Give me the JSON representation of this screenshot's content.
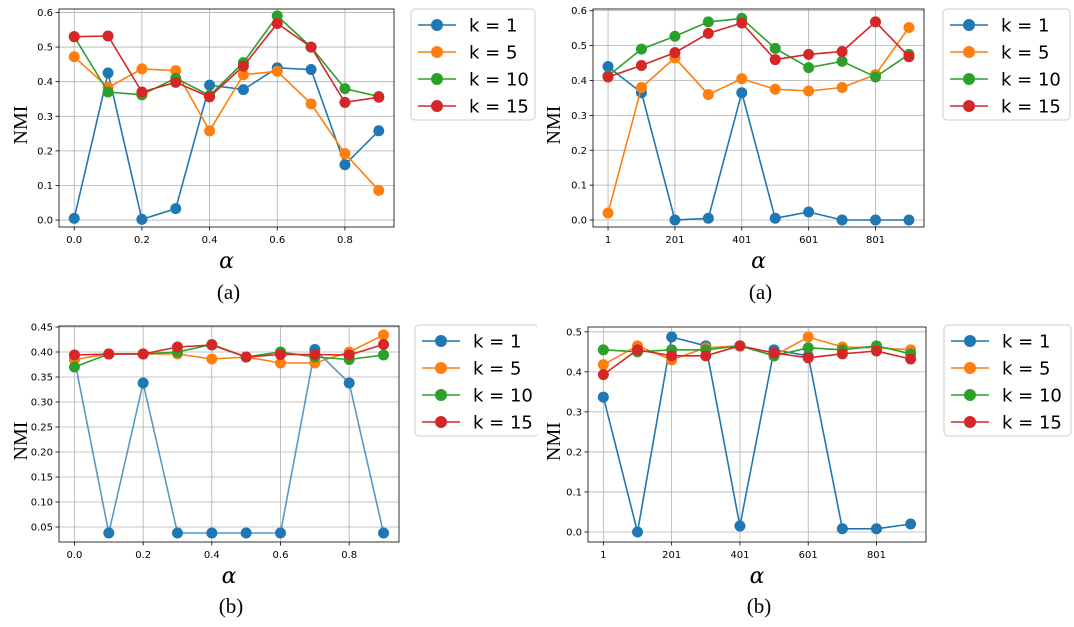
{
  "chart_data": [
    {
      "type": "line",
      "subcaption": "(a)",
      "xlabel": "α",
      "ylabel": "NMI",
      "x": [
        0.0,
        0.1,
        0.2,
        0.3,
        0.4,
        0.5,
        0.6,
        0.7,
        0.8,
        0.9
      ],
      "xlim": [
        -0.045,
        0.945
      ],
      "ylim": [
        -0.02,
        0.61
      ],
      "xticks": [
        0.0,
        0.2,
        0.4,
        0.6,
        0.8
      ],
      "xtick_labels": [
        "0.0",
        "0.2",
        "0.4",
        "0.6",
        "0.8"
      ],
      "yticks": [
        0.0,
        0.1,
        0.2,
        0.3,
        0.4,
        0.5,
        0.6
      ],
      "ytick_labels": [
        "0.0",
        "0.1",
        "0.2",
        "0.3",
        "0.4",
        "0.5",
        "0.6"
      ],
      "grid": true,
      "legend_position": "outside-right",
      "series": [
        {
          "name": "k = 1",
          "color": "#1f77b4",
          "values": [
            0.005,
            0.425,
            0.002,
            0.033,
            0.39,
            0.377,
            0.44,
            0.435,
            0.16,
            0.258
          ]
        },
        {
          "name": "k = 5",
          "color": "#ff7f0e",
          "values": [
            0.472,
            0.383,
            0.437,
            0.432,
            0.258,
            0.42,
            0.43,
            0.336,
            0.192,
            0.086
          ]
        },
        {
          "name": "k = 10",
          "color": "#2ca02c",
          "values": [
            0.53,
            0.37,
            0.362,
            0.41,
            0.36,
            0.455,
            0.59,
            0.5,
            0.38,
            0.357
          ]
        },
        {
          "name": "k = 15",
          "color": "#d62728",
          "values": [
            0.53,
            0.532,
            0.37,
            0.398,
            0.356,
            0.445,
            0.568,
            0.5,
            0.34,
            0.355
          ]
        }
      ]
    },
    {
      "type": "line",
      "subcaption": "(a)",
      "xlabel": "α",
      "ylabel": "NMI",
      "x": [
        1,
        101,
        201,
        301,
        401,
        501,
        601,
        701,
        801,
        901
      ],
      "xlim": [
        -44,
        946
      ],
      "ylim": [
        -0.02,
        0.605
      ],
      "xticks": [
        1,
        201,
        401,
        601,
        801
      ],
      "xtick_labels": [
        "1",
        "201",
        "401",
        "601",
        "801"
      ],
      "yticks": [
        0.0,
        0.1,
        0.2,
        0.3,
        0.4,
        0.5,
        0.6
      ],
      "ytick_labels": [
        "0.0",
        "0.1",
        "0.2",
        "0.3",
        "0.4",
        "0.5",
        "0.6"
      ],
      "grid": true,
      "legend_position": "outside-right",
      "series": [
        {
          "name": "k = 1",
          "color": "#1f77b4",
          "values": [
            0.44,
            0.365,
            0.0,
            0.005,
            0.365,
            0.005,
            0.023,
            0.0,
            0.0,
            0.0
          ]
        },
        {
          "name": "k = 5",
          "color": "#ff7f0e",
          "values": [
            0.02,
            0.38,
            0.465,
            0.36,
            0.405,
            0.375,
            0.37,
            0.38,
            0.417,
            0.552
          ]
        },
        {
          "name": "k = 10",
          "color": "#2ca02c",
          "values": [
            0.413,
            0.49,
            0.527,
            0.568,
            0.578,
            0.492,
            0.437,
            0.455,
            0.41,
            0.475
          ]
        },
        {
          "name": "k = 15",
          "color": "#d62728",
          "values": [
            0.41,
            0.443,
            0.48,
            0.535,
            0.565,
            0.46,
            0.475,
            0.483,
            0.568,
            0.468
          ]
        }
      ]
    },
    {
      "type": "line",
      "subcaption": "(b)",
      "xlabel": "α",
      "ylabel": "NMI",
      "x": [
        0.0,
        0.1,
        0.2,
        0.3,
        0.4,
        0.5,
        0.6,
        0.7,
        0.8,
        0.9
      ],
      "xlim": [
        -0.045,
        0.945
      ],
      "ylim": [
        0.02,
        0.452
      ],
      "xticks": [
        0.0,
        0.2,
        0.4,
        0.6,
        0.8
      ],
      "xtick_labels": [
        "0.0",
        "0.2",
        "0.4",
        "0.6",
        "0.8"
      ],
      "yticks": [
        0.05,
        0.1,
        0.15,
        0.2,
        0.25,
        0.3,
        0.35,
        0.4,
        0.45
      ],
      "ytick_labels": [
        "0.05",
        "0.10",
        "0.15",
        "0.20",
        "0.25",
        "0.30",
        "0.35",
        "0.40",
        "0.45"
      ],
      "grid": true,
      "legend_position": "outside-right",
      "series": [
        {
          "name": "k = 1",
          "color": "#1f77b4",
          "values": [
            0.385,
            0.038,
            0.338,
            0.038,
            0.038,
            0.038,
            0.038,
            0.405,
            0.338,
            0.038
          ]
        },
        {
          "name": "k = 5",
          "color": "#ff7f0e",
          "values": [
            0.385,
            0.396,
            0.396,
            0.396,
            0.386,
            0.39,
            0.378,
            0.378,
            0.4,
            0.434
          ]
        },
        {
          "name": "k = 10",
          "color": "#2ca02c",
          "values": [
            0.37,
            0.396,
            0.396,
            0.4,
            0.415,
            0.39,
            0.4,
            0.39,
            0.385,
            0.394
          ]
        },
        {
          "name": "k = 15",
          "color": "#d62728",
          "values": [
            0.394,
            0.396,
            0.396,
            0.41,
            0.414,
            0.39,
            0.395,
            0.395,
            0.394,
            0.415
          ]
        }
      ]
    },
    {
      "type": "line",
      "subcaption": "(b)",
      "xlabel": "α",
      "ylabel": "NMI",
      "x": [
        1,
        101,
        201,
        301,
        401,
        501,
        601,
        701,
        801,
        901
      ],
      "xlim": [
        -44,
        946
      ],
      "ylim": [
        -0.025,
        0.512
      ],
      "xticks": [
        1,
        201,
        401,
        601,
        801
      ],
      "xtick_labels": [
        "1",
        "201",
        "401",
        "601",
        "801"
      ],
      "yticks": [
        0.0,
        0.1,
        0.2,
        0.3,
        0.4,
        0.5
      ],
      "ytick_labels": [
        "0.0",
        "0.1",
        "0.2",
        "0.3",
        "0.4",
        "0.5"
      ],
      "grid": true,
      "legend_position": "outside-right",
      "series": [
        {
          "name": "k = 1",
          "color": "#1f77b4",
          "values": [
            0.337,
            0.0,
            0.487,
            0.465,
            0.015,
            0.455,
            0.44,
            0.008,
            0.008,
            0.02
          ]
        },
        {
          "name": "k = 5",
          "color": "#ff7f0e",
          "values": [
            0.418,
            0.465,
            0.43,
            0.46,
            0.465,
            0.44,
            0.487,
            0.462,
            0.46,
            0.455
          ]
        },
        {
          "name": "k = 10",
          "color": "#2ca02c",
          "values": [
            0.455,
            0.45,
            0.455,
            0.455,
            0.465,
            0.44,
            0.46,
            0.455,
            0.465,
            0.445
          ]
        },
        {
          "name": "k = 15",
          "color": "#d62728",
          "values": [
            0.393,
            0.455,
            0.44,
            0.44,
            0.465,
            0.447,
            0.435,
            0.445,
            0.452,
            0.432
          ]
        }
      ]
    }
  ]
}
